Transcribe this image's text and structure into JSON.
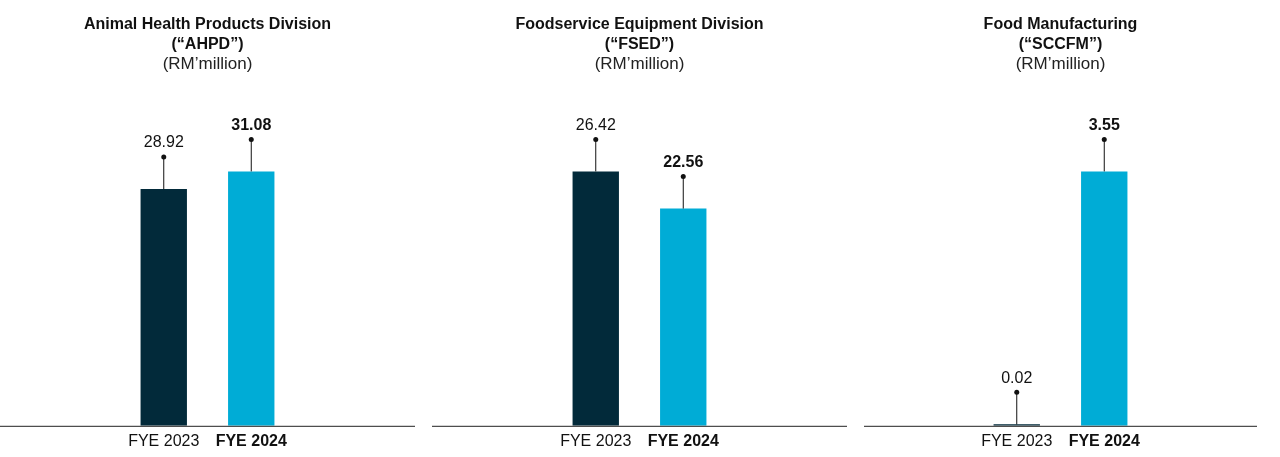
{
  "chart_data": [
    {
      "type": "bar",
      "title": "Animal Health Products Division\n(“AHPD”)",
      "subtitle": "(RM’million)",
      "categories": [
        "FYE 2023",
        "FYE 2024"
      ],
      "values": [
        28.92,
        31.08
      ],
      "colors": [
        "#022a3a",
        "#00acd6"
      ],
      "data_labels": true
    },
    {
      "type": "bar",
      "title": "Foodservice Equipment Division\n(“FSED”)",
      "subtitle": "(RM’million)",
      "categories": [
        "FYE 2023",
        "FYE 2024"
      ],
      "values": [
        26.42,
        22.56
      ],
      "colors": [
        "#022a3a",
        "#00acd6"
      ],
      "data_labels": true
    },
    {
      "type": "bar",
      "title": "Food Manufacturing\n(“SCCFM”)",
      "subtitle": "(RM’million)",
      "categories": [
        "FYE 2023",
        "FYE 2024"
      ],
      "values": [
        0.02,
        3.55
      ],
      "colors": [
        "#022a3a",
        "#00acd6"
      ],
      "data_labels": true
    }
  ]
}
